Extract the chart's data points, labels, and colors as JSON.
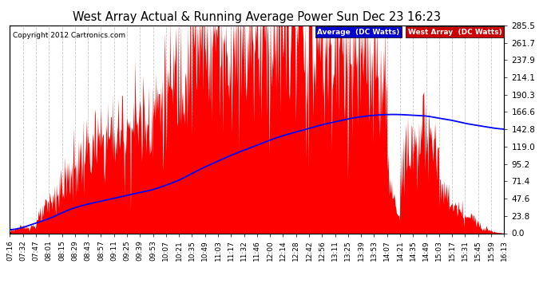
{
  "title": "West Array Actual & Running Average Power Sun Dec 23 16:23",
  "copyright": "Copyright 2012 Cartronics.com",
  "bg_color": "#ffffff",
  "plot_bg_color": "#ffffff",
  "grid_color": "#c8c8c8",
  "bar_color": "#ff0000",
  "avg_line_color": "#0000ff",
  "ylim": [
    0.0,
    285.5
  ],
  "yticks": [
    0.0,
    23.8,
    47.6,
    71.4,
    95.2,
    119.0,
    142.8,
    166.6,
    190.3,
    214.1,
    237.9,
    261.7,
    285.5
  ],
  "legend_avg_label": "Average  (DC Watts)",
  "legend_west_label": "West Array  (DC Watts)",
  "legend_avg_bg": "#0000cc",
  "legend_west_bg": "#cc0000",
  "x_labels": [
    "07:16",
    "07:32",
    "07:47",
    "08:01",
    "08:15",
    "08:29",
    "08:43",
    "08:57",
    "09:11",
    "09:25",
    "09:39",
    "09:53",
    "10:07",
    "10:21",
    "10:35",
    "10:49",
    "11:03",
    "11:17",
    "11:32",
    "11:46",
    "12:00",
    "12:14",
    "12:28",
    "12:42",
    "12:56",
    "13:11",
    "13:25",
    "13:39",
    "13:53",
    "14:07",
    "14:21",
    "14:35",
    "14:49",
    "15:03",
    "15:17",
    "15:31",
    "15:45",
    "15:59",
    "16:13"
  ],
  "avg_values": [
    5,
    8,
    14,
    20,
    28,
    35,
    40,
    44,
    48,
    52,
    56,
    60,
    66,
    73,
    82,
    91,
    99,
    107,
    114,
    121,
    128,
    134,
    139,
    144,
    149,
    153,
    157,
    160,
    162,
    163,
    163,
    162,
    161,
    158,
    155,
    151,
    148,
    145,
    143
  ]
}
